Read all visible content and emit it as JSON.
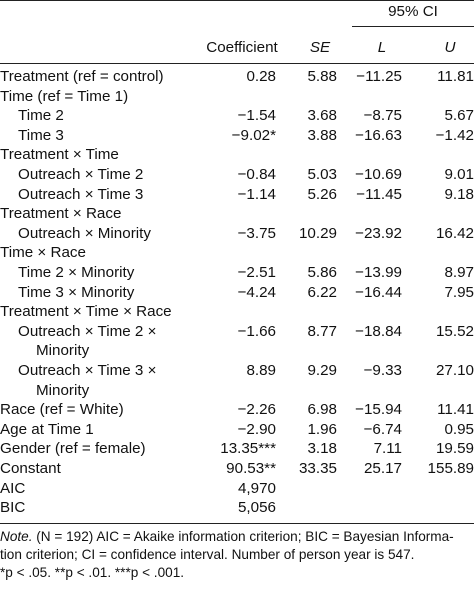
{
  "header": {
    "ci_label": "95% CI",
    "coefficient": "Coefficient",
    "se": "SE",
    "lower": "L",
    "upper": "U"
  },
  "rows": [
    {
      "label": "Treatment (ref = control)",
      "indent": 0,
      "coef": "0.28",
      "se": "5.88",
      "l": "−11.25",
      "u": "11.81"
    },
    {
      "label": "Time (ref = Time 1)",
      "indent": 0,
      "coef": "",
      "se": "",
      "l": "",
      "u": ""
    },
    {
      "label": "Time 2",
      "indent": 1,
      "coef": "−1.54",
      "se": "3.68",
      "l": "−8.75",
      "u": "5.67"
    },
    {
      "label": "Time 3",
      "indent": 1,
      "coef": "−9.02*",
      "se": "3.88",
      "l": "−16.63",
      "u": "−1.42"
    },
    {
      "label": "Treatment × Time",
      "indent": 0,
      "coef": "",
      "se": "",
      "l": "",
      "u": ""
    },
    {
      "label": "Outreach × Time 2",
      "indent": 1,
      "coef": "−0.84",
      "se": "5.03",
      "l": "−10.69",
      "u": "9.01"
    },
    {
      "label": "Outreach × Time 3",
      "indent": 1,
      "coef": "−1.14",
      "se": "5.26",
      "l": "−11.45",
      "u": "9.18"
    },
    {
      "label": "Treatment × Race",
      "indent": 0,
      "coef": "",
      "se": "",
      "l": "",
      "u": ""
    },
    {
      "label": "Outreach × Minority",
      "indent": 1,
      "coef": "−3.75",
      "se": "10.29",
      "l": "−23.92",
      "u": "16.42"
    },
    {
      "label": "Time × Race",
      "indent": 0,
      "coef": "",
      "se": "",
      "l": "",
      "u": ""
    },
    {
      "label": "Time 2 × Minority",
      "indent": 1,
      "coef": "−2.51",
      "se": "5.86",
      "l": "−13.99",
      "u": "8.97"
    },
    {
      "label": "Time 3 × Minority",
      "indent": 1,
      "coef": "−4.24",
      "se": "6.22",
      "l": "−16.44",
      "u": "7.95"
    },
    {
      "label": "Treatment × Time × Race",
      "indent": 0,
      "coef": "",
      "se": "",
      "l": "",
      "u": ""
    },
    {
      "label": "Outreach × Time 2 ×",
      "label2": "Minority",
      "indent": 1,
      "coef": "−1.66",
      "se": "8.77",
      "l": "−18.84",
      "u": "15.52"
    },
    {
      "label": "Outreach × Time 3 ×",
      "label2": "Minority",
      "indent": 1,
      "coef": "8.89",
      "se": "9.29",
      "l": "−9.33",
      "u": "27.10"
    },
    {
      "label": "Race (ref = White)",
      "indent": 0,
      "coef": "−2.26",
      "se": "6.98",
      "l": "−15.94",
      "u": "11.41"
    },
    {
      "label": "Age at Time 1",
      "indent": 0,
      "coef": "−2.90",
      "se": "1.96",
      "l": "−6.74",
      "u": "0.95"
    },
    {
      "label": "Gender (ref = female)",
      "indent": 0,
      "coef": "13.35***",
      "se": "3.18",
      "l": "7.11",
      "u": "19.59"
    },
    {
      "label": "Constant",
      "indent": 0,
      "coef": "90.53**",
      "se": "33.35",
      "l": "25.17",
      "u": "155.89"
    },
    {
      "label": "AIC",
      "indent": 0,
      "coef": "4,970",
      "se": "",
      "l": "",
      "u": ""
    },
    {
      "label": "BIC",
      "indent": 0,
      "coef": "5,056",
      "se": "",
      "l": "",
      "u": ""
    }
  ],
  "note": {
    "lead": "Note.",
    "line1_rest": " (N = 192) AIC = Akaike information criterion; BIC = Bayesian Informa-",
    "line2": "tion criterion; CI = confidence interval. Number of person year is 547.",
    "line3": "*p < .05. **p < .01. ***p < .001."
  }
}
